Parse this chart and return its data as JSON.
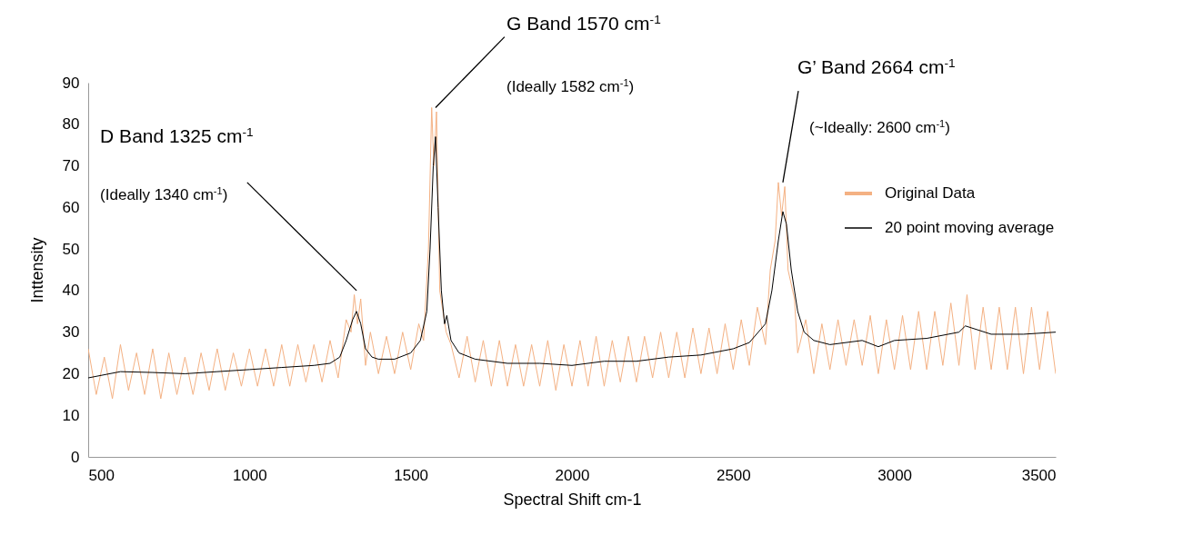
{
  "chart_data": {
    "type": "line",
    "xlabel": "Spectral Shift cm-1",
    "ylabel": "Inttensity",
    "xlim": [
      500,
      3500
    ],
    "xticks": [
      500,
      1000,
      1500,
      2000,
      2500,
      3000,
      3500
    ],
    "ylim": [
      0,
      90
    ],
    "yticks": [
      0,
      10,
      20,
      30,
      40,
      50,
      60,
      70,
      80,
      90
    ],
    "grid": false,
    "legend": "right",
    "marker": "none",
    "line_style": "solid",
    "annotations": [
      "D Band 1325 cm$^{-1}$",
      {
        "text": "(Ideally 1340 cm$^{-1}$)",
        "x": 1332,
        "y": 40
      },
      {
        "text": "G Band 1570 cm$^{-1}$",
        "x": 1577,
        "y": 84
      },
      "(Ideally 1582 cm$^{-1}$)",
      {
        "text": "G’ Band 2664 cm$^{-1}$",
        "x": 2654,
        "y": 66
      },
      "(~Ideally: 2600 cm$^{-1}$)"
    ],
    "series": [
      {
        "name": "Original Data",
        "color": "#f4b183",
        "x": [
          500,
          525,
          550,
          575,
          600,
          625,
          650,
          675,
          700,
          725,
          750,
          775,
          800,
          825,
          850,
          875,
          900,
          925,
          950,
          975,
          1000,
          1025,
          1050,
          1075,
          1100,
          1125,
          1150,
          1175,
          1200,
          1225,
          1250,
          1275,
          1300,
          1315,
          1325,
          1335,
          1345,
          1360,
          1375,
          1400,
          1425,
          1450,
          1475,
          1500,
          1525,
          1540,
          1555,
          1565,
          1572,
          1580,
          1590,
          1600,
          1610,
          1625,
          1650,
          1675,
          1700,
          1725,
          1750,
          1775,
          1800,
          1825,
          1850,
          1875,
          1900,
          1925,
          1950,
          1975,
          2000,
          2025,
          2050,
          2075,
          2100,
          2125,
          2150,
          2175,
          2200,
          2225,
          2250,
          2275,
          2300,
          2325,
          2350,
          2375,
          2400,
          2425,
          2450,
          2475,
          2500,
          2525,
          2550,
          2575,
          2600,
          2615,
          2630,
          2640,
          2650,
          2660,
          2670,
          2690,
          2700,
          2725,
          2750,
          2775,
          2800,
          2825,
          2850,
          2875,
          2900,
          2925,
          2950,
          2975,
          3000,
          3025,
          3050,
          3075,
          3100,
          3125,
          3150,
          3175,
          3200,
          3225,
          3250,
          3275,
          3300,
          3325,
          3350,
          3375,
          3400,
          3425,
          3450,
          3475,
          3500
        ],
        "values": [
          26,
          15,
          24,
          14,
          27,
          16,
          25,
          15,
          26,
          14,
          25,
          15,
          24,
          15,
          25,
          16,
          26,
          16,
          25,
          17,
          26,
          17,
          26,
          17,
          27,
          17,
          27,
          18,
          27,
          18,
          28,
          19,
          33,
          30,
          39,
          32,
          38,
          22,
          30,
          20,
          29,
          20,
          30,
          21,
          32,
          28,
          50,
          84,
          70,
          83,
          40,
          35,
          30,
          27,
          19,
          29,
          18,
          28,
          17,
          28,
          17,
          27,
          17,
          27,
          17,
          28,
          16,
          27,
          17,
          28,
          17,
          29,
          17,
          28,
          18,
          29,
          18,
          29,
          19,
          30,
          19,
          30,
          19,
          31,
          20,
          31,
          20,
          32,
          21,
          33,
          22,
          36,
          27,
          45,
          52,
          66,
          58,
          65,
          45,
          38,
          25,
          33,
          20,
          32,
          21,
          33,
          22,
          33,
          22,
          34,
          20,
          33,
          21,
          34,
          21,
          35,
          21,
          35,
          22,
          37,
          22,
          39,
          21,
          36,
          21,
          36,
          21,
          36,
          20,
          36,
          21,
          35,
          20
        ]
      },
      {
        "name": "20 point moving average",
        "color": "#000000",
        "x": [
          500,
          600,
          700,
          800,
          900,
          1000,
          1100,
          1200,
          1250,
          1280,
          1300,
          1320,
          1332,
          1345,
          1360,
          1380,
          1400,
          1450,
          1500,
          1530,
          1550,
          1560,
          1570,
          1577,
          1585,
          1595,
          1605,
          1612,
          1625,
          1650,
          1700,
          1800,
          1900,
          2000,
          2100,
          2200,
          2300,
          2400,
          2500,
          2550,
          2600,
          2620,
          2640,
          2654,
          2665,
          2680,
          2700,
          2720,
          2750,
          2800,
          2900,
          2950,
          3000,
          3100,
          3200,
          3220,
          3300,
          3400,
          3500
        ],
        "values": [
          19,
          20.5,
          20.3,
          20,
          20.5,
          21,
          21.5,
          22,
          22.5,
          24,
          28,
          33,
          35,
          32,
          26,
          24,
          23.5,
          23.5,
          25,
          28,
          35,
          50,
          70,
          77,
          60,
          40,
          32,
          34,
          28,
          25,
          23.5,
          22.5,
          22.5,
          22,
          23,
          23,
          24,
          24.5,
          26,
          27.5,
          32,
          40,
          52,
          59,
          56,
          45,
          35,
          30,
          28,
          27,
          28,
          26.5,
          28,
          28.5,
          30,
          31.5,
          29.5,
          29.5,
          30
        ]
      }
    ]
  }
}
